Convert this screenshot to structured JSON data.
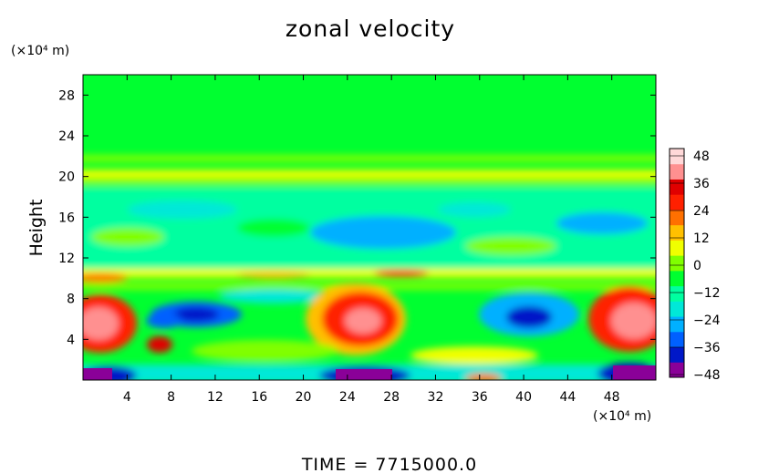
{
  "chart_data": {
    "type": "heatmap",
    "title": "zonal velocity",
    "ylabel": "Height",
    "y_unit_label": "(×10⁴ m)",
    "x_unit_label": "(×10⁴ m)",
    "footer": "TIME = 7715000.0",
    "xlim": [
      0,
      52
    ],
    "ylim": [
      0,
      30
    ],
    "x_ticks": [
      "4",
      "8",
      "12",
      "16",
      "20",
      "24",
      "28",
      "32",
      "36",
      "40",
      "44",
      "48"
    ],
    "y_ticks": [
      "4",
      "8",
      "12",
      "16",
      "20",
      "24",
      "28"
    ],
    "colorbar": {
      "min": -48,
      "max": 48,
      "ticks": [
        "48",
        "36",
        "24",
        "12",
        "0",
        "−12",
        "−24",
        "−36",
        "−48"
      ],
      "colors": [
        "#8a0098",
        "#0018c8",
        "#0060ff",
        "#00b0ff",
        "#00e8d8",
        "#00ffa0",
        "#00ff30",
        "#80ff00",
        "#f0ff00",
        "#ffc000",
        "#ff7000",
        "#ff2000",
        "#e00000",
        "#ff9090",
        "#ffd8d8"
      ]
    }
  }
}
